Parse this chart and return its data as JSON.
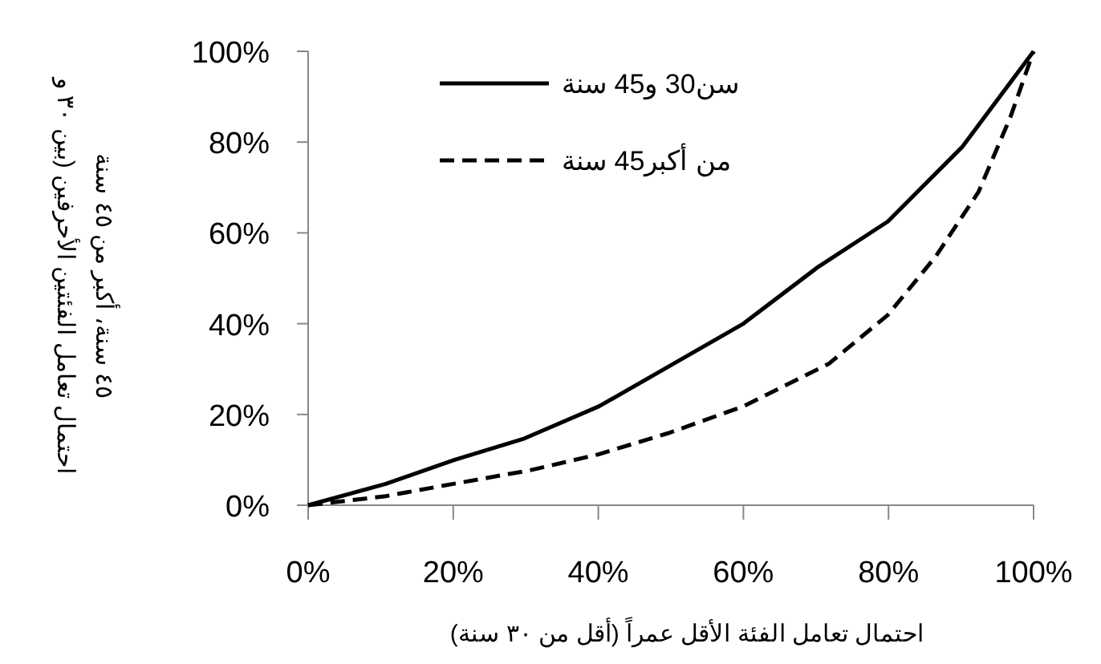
{
  "chart_data": {
    "type": "line",
    "xlabel": "احتمال تعامل الفئة الأقل عمراً (أقل من ٣٠ سنة)",
    "ylabel": "احتمال تعامل الفئتين الأحرفين (بين ٣٠ و ٤٥ سنة، أكبر من ٤٥ سنة",
    "xlim": [
      0,
      100
    ],
    "ylim": [
      0,
      100
    ],
    "xticks": [
      {
        "value": 0,
        "label": "0%"
      },
      {
        "value": 20,
        "label": "20%"
      },
      {
        "value": 40,
        "label": "40%"
      },
      {
        "value": 60,
        "label": "60%"
      },
      {
        "value": 80,
        "label": "80%"
      },
      {
        "value": 100,
        "label": "100%"
      }
    ],
    "yticks": [
      {
        "value": 0,
        "label": "0%"
      },
      {
        "value": 20,
        "label": "20%"
      },
      {
        "value": 40,
        "label": "40%"
      },
      {
        "value": 60,
        "label": "60%"
      },
      {
        "value": 80,
        "label": "80%"
      },
      {
        "value": 100,
        "label": "100%"
      }
    ],
    "legend": "top left",
    "grid": false,
    "marker": "none",
    "series": [
      {
        "name": "سن30 و45 سنة",
        "color": "#000000",
        "line_style": "solid",
        "x": [
          0,
          10.7,
          20.2,
          29.8,
          40.1,
          50.4,
          60,
          70.3,
          79.9,
          90.2,
          100
        ],
        "values": [
          0,
          4.7,
          10,
          14.7,
          21.8,
          31.2,
          40,
          52.5,
          62.5,
          79,
          100
        ]
      },
      {
        "name": "من أكبر45 سنة",
        "color": "#000000",
        "line_style": "dashed",
        "x": [
          0,
          10.7,
          20,
          30.6,
          40,
          49.7,
          60,
          71.8,
          79.9,
          86.5,
          92.4,
          96.8,
          99.4,
          100
        ],
        "values": [
          0,
          2,
          4.7,
          7.7,
          11.2,
          15.9,
          21.8,
          31.2,
          41.9,
          54.8,
          69,
          85.5,
          97.3,
          100
        ]
      }
    ]
  }
}
